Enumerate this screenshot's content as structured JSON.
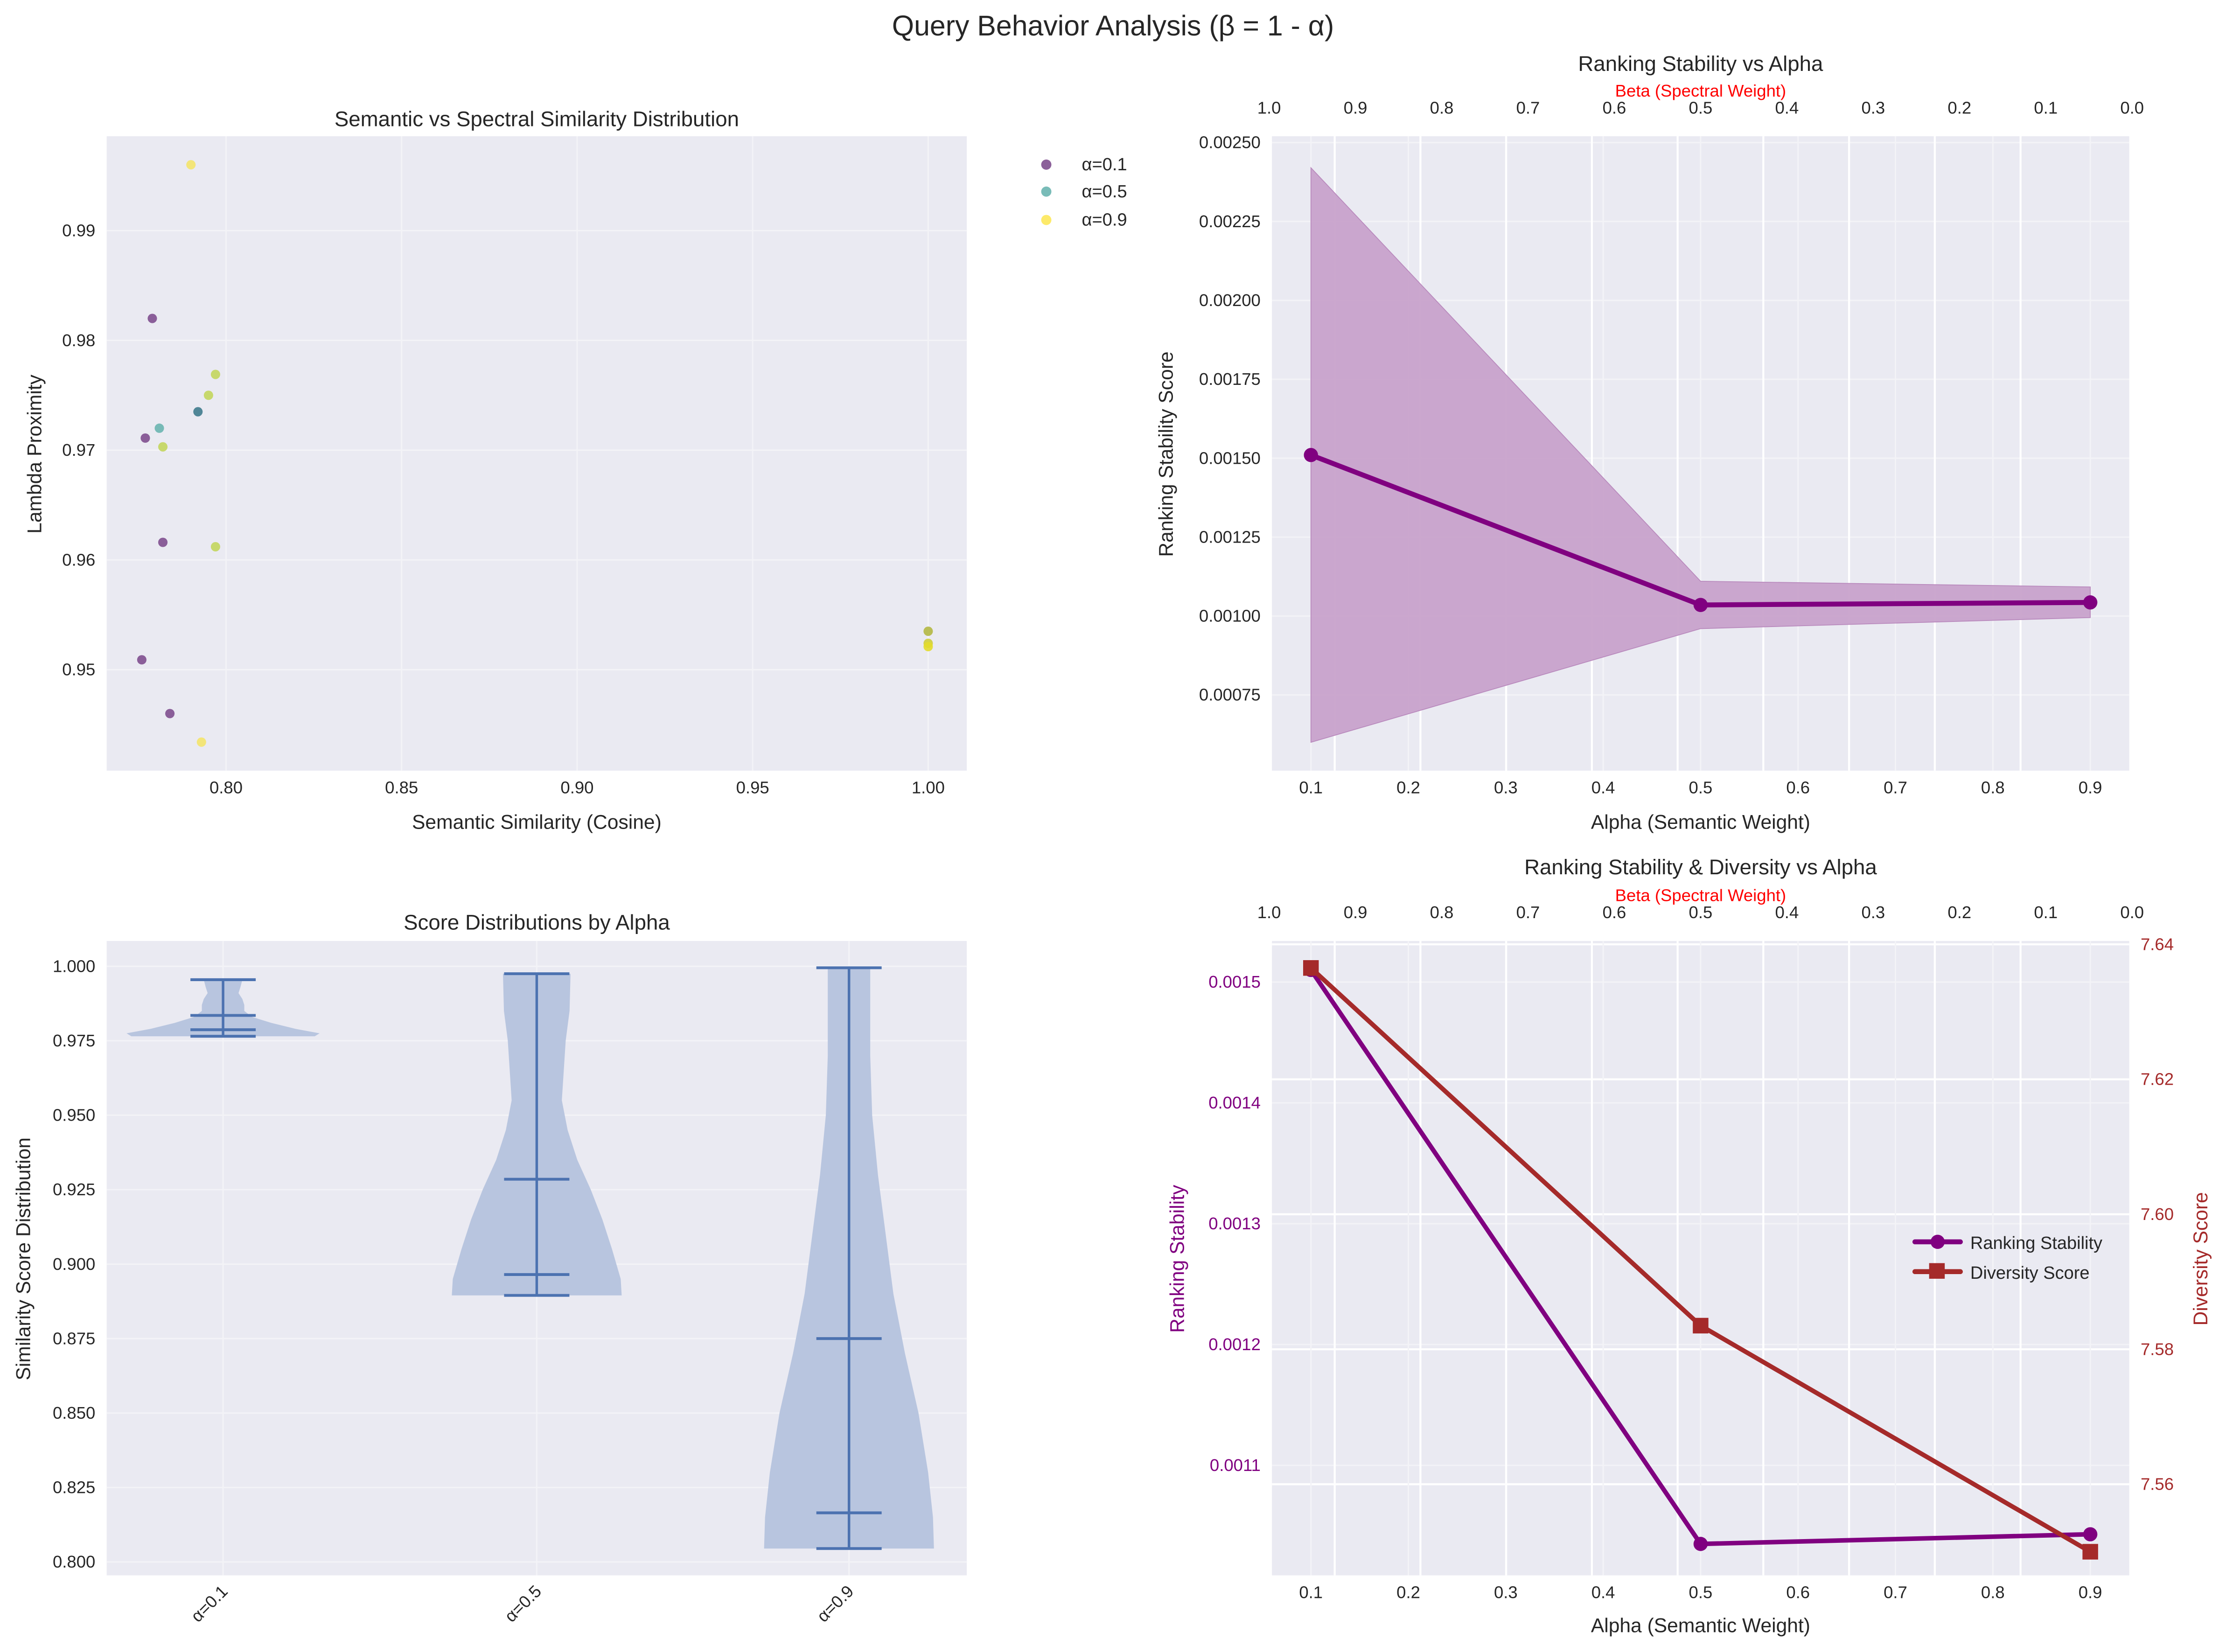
{
  "suptitle": "Query Behavior Analysis (β = 1 - α)",
  "colors": {
    "panel_bg": "#eaeaf2",
    "grid": "#ffffff",
    "purple": "#800080",
    "fill_purple": "#c8a2cb",
    "brown": "#a52a2a",
    "violin_fill": "#b8c5df",
    "violin_line": "#4c72b0",
    "beta_red": "#ff0000"
  },
  "chart_data": [
    {
      "type": "scatter",
      "title": "Semantic vs Spectral Similarity Distribution",
      "xlabel": "Semantic Similarity (Cosine)",
      "ylabel": "Lambda Proximity",
      "xlim": [
        0.766,
        1.011
      ],
      "ylim": [
        0.9408,
        0.9986
      ],
      "xticks": [
        "0.80",
        "0.85",
        "0.90",
        "0.95",
        "1.00"
      ],
      "xtick_values": [
        0.8,
        0.85,
        0.9,
        0.95,
        1.0
      ],
      "yticks": [
        "0.95",
        "0.96",
        "0.97",
        "0.98",
        "0.99"
      ],
      "ytick_values": [
        0.95,
        0.96,
        0.97,
        0.98,
        0.99
      ],
      "legend": [
        "α=0.1",
        "α=0.5",
        "α=0.9"
      ],
      "legend_colors": [
        "#7f4f8f",
        "#6ab5b0",
        "#fde85a"
      ],
      "points": [
        {
          "x": 0.79,
          "y": 0.996,
          "color": "#f4e46b"
        },
        {
          "x": 0.779,
          "y": 0.982,
          "color": "#7f4f8f"
        },
        {
          "x": 0.797,
          "y": 0.9769,
          "color": "#c3d65d"
        },
        {
          "x": 0.795,
          "y": 0.975,
          "color": "#c3d65d"
        },
        {
          "x": 0.792,
          "y": 0.9735,
          "color": "#3f7b8d"
        },
        {
          "x": 0.781,
          "y": 0.972,
          "color": "#6ab5b0"
        },
        {
          "x": 0.777,
          "y": 0.9711,
          "color": "#7f4f8f"
        },
        {
          "x": 0.782,
          "y": 0.9703,
          "color": "#c3d65d"
        },
        {
          "x": 0.782,
          "y": 0.9616,
          "color": "#7f4f8f"
        },
        {
          "x": 0.797,
          "y": 0.9612,
          "color": "#c3d65d"
        },
        {
          "x": 0.776,
          "y": 0.9509,
          "color": "#7f4f8f"
        },
        {
          "x": 0.784,
          "y": 0.946,
          "color": "#7f4f8f"
        },
        {
          "x": 0.793,
          "y": 0.9434,
          "color": "#f4e46b"
        },
        {
          "x": 1.0,
          "y": 0.9535,
          "color": "#b4b843"
        },
        {
          "x": 1.0,
          "y": 0.9524,
          "color": "#d0cf3a"
        },
        {
          "x": 1.0,
          "y": 0.9521,
          "color": "#e3dc2c"
        }
      ]
    },
    {
      "type": "line",
      "title": "Ranking Stability vs Alpha",
      "xlabel": "Alpha (Semantic Weight)",
      "ylabel": "Ranking Stability Score",
      "top_xlabel": "Beta (Spectral Weight)",
      "xlim": [
        0.06,
        0.94
      ],
      "ylim": [
        0.00051,
        0.00252
      ],
      "xticks": [
        "0.1",
        "0.2",
        "0.3",
        "0.4",
        "0.5",
        "0.6",
        "0.7",
        "0.8",
        "0.9"
      ],
      "xtick_values": [
        0.1,
        0.2,
        0.3,
        0.4,
        0.5,
        0.6,
        0.7,
        0.8,
        0.9
      ],
      "top_xticks": [
        "1.0",
        "0.9",
        "0.8",
        "0.7",
        "0.6",
        "0.5",
        "0.4",
        "0.3",
        "0.2",
        "0.1",
        "0.0"
      ],
      "yticks": [
        "0.00075",
        "0.00100",
        "0.00125",
        "0.00150",
        "0.00175",
        "0.00200",
        "0.00225",
        "0.00250"
      ],
      "ytick_values": [
        0.00075,
        0.001,
        0.00125,
        0.0015,
        0.00175,
        0.002,
        0.00225,
        0.0025
      ],
      "x": [
        0.1,
        0.5,
        0.9
      ],
      "series": [
        {
          "name": "Ranking Stability",
          "values": [
            0.00151,
            0.001035,
            0.001043
          ],
          "lower": [
            0.0006,
            0.00096,
            0.000995
          ],
          "upper": [
            0.00242,
            0.00111,
            0.001092
          ]
        }
      ]
    },
    {
      "type": "violin",
      "title": "Score Distributions by Alpha",
      "xlabel": "",
      "ylabel": "Similarity Score Distribution",
      "ylim": [
        0.7955,
        1.0085
      ],
      "categories": [
        "α=0.1",
        "α=0.5",
        "α=0.9"
      ],
      "yticks": [
        "0.800",
        "0.825",
        "0.850",
        "0.875",
        "0.900",
        "0.925",
        "0.950",
        "0.975",
        "1.000"
      ],
      "ytick_values": [
        0.8,
        0.825,
        0.85,
        0.875,
        0.9,
        0.925,
        0.95,
        0.975,
        1.0
      ],
      "series": [
        {
          "name": "α=0.1",
          "min": 0.9765,
          "max": 0.9955,
          "median": 0.9787,
          "mean": 0.9835,
          "profile": [
            [
              0.9765,
              0.95
            ],
            [
              0.9775,
              1.0
            ],
            [
              0.979,
              0.75
            ],
            [
              0.981,
              0.5
            ],
            [
              0.983,
              0.3
            ],
            [
              0.985,
              0.22
            ],
            [
              0.987,
              0.22
            ],
            [
              0.989,
              0.2
            ],
            [
              0.991,
              0.16
            ],
            [
              0.993,
              0.18
            ],
            [
              0.9955,
              0.2
            ]
          ]
        },
        {
          "name": "α=0.5",
          "min": 0.8895,
          "max": 0.9975,
          "median": 0.8965,
          "mean": 0.9285,
          "profile": [
            [
              0.8895,
              0.88
            ],
            [
              0.895,
              0.87
            ],
            [
              0.905,
              0.78
            ],
            [
              0.915,
              0.68
            ],
            [
              0.925,
              0.56
            ],
            [
              0.935,
              0.42
            ],
            [
              0.945,
              0.32
            ],
            [
              0.955,
              0.26
            ],
            [
              0.965,
              0.28
            ],
            [
              0.975,
              0.3
            ],
            [
              0.985,
              0.34
            ],
            [
              0.9975,
              0.35
            ]
          ]
        },
        {
          "name": "α=0.9",
          "min": 0.8045,
          "max": 0.9995,
          "median": 0.8165,
          "mean": 0.875,
          "profile": [
            [
              0.8045,
              0.88
            ],
            [
              0.815,
              0.87
            ],
            [
              0.83,
              0.82
            ],
            [
              0.85,
              0.72
            ],
            [
              0.87,
              0.58
            ],
            [
              0.89,
              0.46
            ],
            [
              0.91,
              0.38
            ],
            [
              0.93,
              0.3
            ],
            [
              0.95,
              0.24
            ],
            [
              0.97,
              0.22
            ],
            [
              0.99,
              0.22
            ],
            [
              0.9995,
              0.22
            ]
          ]
        }
      ]
    },
    {
      "type": "line",
      "title": "Ranking Stability & Diversity vs Alpha",
      "xlabel": "Alpha (Semantic Weight)",
      "ylabel": "Ranking Stability",
      "ylabel_right": "Diversity Score",
      "top_xlabel": "Beta (Spectral Weight)",
      "xlim": [
        0.06,
        0.94
      ],
      "ylim": [
        0.001009,
        0.001534
      ],
      "ylim_right": [
        7.5465,
        7.6405
      ],
      "xticks": [
        "0.1",
        "0.2",
        "0.3",
        "0.4",
        "0.5",
        "0.6",
        "0.7",
        "0.8",
        "0.9"
      ],
      "xtick_values": [
        0.1,
        0.2,
        0.3,
        0.4,
        0.5,
        0.6,
        0.7,
        0.8,
        0.9
      ],
      "top_xticks": [
        "1.0",
        "0.9",
        "0.8",
        "0.7",
        "0.6",
        "0.5",
        "0.4",
        "0.3",
        "0.2",
        "0.1",
        "0.0"
      ],
      "yticks": [
        "0.0011",
        "0.0012",
        "0.0013",
        "0.0014",
        "0.0015"
      ],
      "ytick_values": [
        0.0011,
        0.0012,
        0.0013,
        0.0014,
        0.0015
      ],
      "yticks_right": [
        "7.56",
        "7.58",
        "7.60",
        "7.62",
        "7.64"
      ],
      "ytick_values_right": [
        7.56,
        7.58,
        7.6,
        7.62,
        7.64
      ],
      "x": [
        0.1,
        0.5,
        0.9
      ],
      "series": [
        {
          "name": "Ranking Stability",
          "axis": "left",
          "marker": "circle",
          "values": [
            0.00151,
            0.001035,
            0.001043
          ]
        },
        {
          "name": "Diversity Score",
          "axis": "right",
          "marker": "square",
          "values": [
            7.6365,
            7.5835,
            7.55
          ]
        }
      ],
      "legend": [
        "Ranking Stability",
        "Diversity Score"
      ],
      "legend_position": "center-right"
    }
  ]
}
